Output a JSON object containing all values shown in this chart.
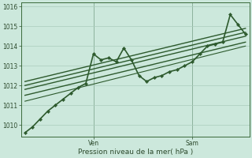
{
  "background_color": "#cce8dc",
  "grid_color": "#aaccbb",
  "line_color": "#2d5a2d",
  "title": "Pression niveau de la mer( hPa )",
  "ylabel_ticks": [
    1010,
    1011,
    1012,
    1013,
    1014,
    1015,
    1016
  ],
  "ven_x": 9,
  "sam_x": 22,
  "total_points": 30,
  "ylim": [
    1009.4,
    1016.2
  ],
  "xlim": [
    -0.5,
    29.5
  ],
  "series_main": {
    "x": [
      0,
      1,
      2,
      3,
      4,
      5,
      6,
      7,
      8,
      9,
      10,
      11,
      12,
      13,
      14,
      15,
      16,
      17,
      18,
      19,
      20,
      21,
      22,
      23,
      24,
      25,
      26,
      27,
      28,
      29
    ],
    "y": [
      1009.6,
      1009.9,
      1010.3,
      1010.7,
      1011.0,
      1011.3,
      1011.6,
      1011.9,
      1012.1,
      1013.6,
      1013.3,
      1013.4,
      1013.2,
      1013.9,
      1013.3,
      1012.5,
      1012.2,
      1012.4,
      1012.5,
      1012.7,
      1012.8,
      1013.0,
      1013.2,
      1013.6,
      1014.0,
      1014.1,
      1014.2,
      1015.6,
      1015.1,
      1014.6
    ],
    "lw": 1.2,
    "marker": "D",
    "ms": 2.2
  },
  "band_lines": [
    {
      "x0": 0,
      "y0": 1011.5,
      "x1": 29,
      "y1": 1014.2,
      "lw": 1.0
    },
    {
      "x0": 0,
      "y0": 1011.8,
      "x1": 29,
      "y1": 1014.5,
      "lw": 1.0
    },
    {
      "x0": 0,
      "y0": 1012.0,
      "x1": 29,
      "y1": 1014.7,
      "lw": 1.0
    },
    {
      "x0": 0,
      "y0": 1012.2,
      "x1": 29,
      "y1": 1014.9,
      "lw": 1.0
    },
    {
      "x0": 0,
      "y0": 1011.2,
      "x1": 29,
      "y1": 1014.0,
      "lw": 0.8
    }
  ]
}
